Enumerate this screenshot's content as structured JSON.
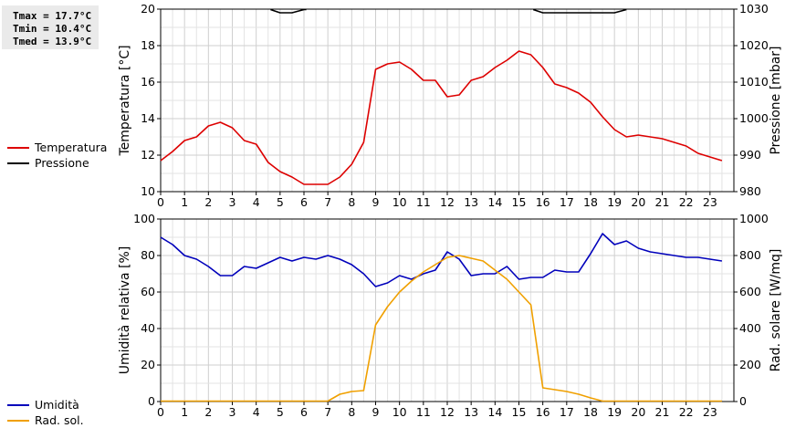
{
  "stats": {
    "tmax": "Tmax = 17.7°C",
    "tmin": "Tmin = 10.4°C",
    "tmed": "Tmed = 13.9°C"
  },
  "legend_top": [
    {
      "label": "Temperatura",
      "color": "#dd0000"
    },
    {
      "label": "Pressione",
      "color": "#000000"
    }
  ],
  "legend_bottom": [
    {
      "label": "Umidità",
      "color": "#0000bb"
    },
    {
      "label": "Rad. sol.",
      "color": "#f0a000"
    }
  ],
  "chart_data": [
    {
      "type": "line",
      "xlabel": "",
      "x_ticks": [
        "0",
        "1",
        "2",
        "3",
        "4",
        "5",
        "6",
        "7",
        "8",
        "9",
        "10",
        "11",
        "12",
        "13",
        "14",
        "15",
        "16",
        "17",
        "18",
        "19",
        "20",
        "21",
        "22",
        "23"
      ],
      "xlim": [
        0,
        24
      ],
      "ylabel": "Temperatura [°C]",
      "ylim": [
        10,
        20
      ],
      "y_ticks": [
        "10",
        "12",
        "14",
        "16",
        "18",
        "20"
      ],
      "y2label": "Pressione [mbar]",
      "y2lim": [
        980,
        1030
      ],
      "y2_ticks": [
        "980",
        "990",
        "1000",
        "1010",
        "1020",
        "1030"
      ],
      "grid": true,
      "series": [
        {
          "name": "Temperatura",
          "axis": "left",
          "color": "#dd0000",
          "x": [
            0,
            0.5,
            1,
            1.5,
            2,
            2.5,
            3,
            3.5,
            4,
            4.5,
            5,
            5.5,
            6,
            6.5,
            7,
            7.5,
            8,
            8.5,
            9,
            9.5,
            10,
            10.5,
            11,
            11.5,
            12,
            12.5,
            13,
            13.5,
            14,
            14.5,
            15,
            15.5,
            16,
            16.5,
            17,
            17.5,
            18,
            18.5,
            19,
            19.5,
            20,
            20.5,
            21,
            21.5,
            22,
            22.5,
            23,
            23.5
          ],
          "y": [
            11.7,
            12.2,
            12.8,
            13.0,
            13.6,
            13.8,
            13.5,
            12.8,
            12.6,
            11.6,
            11.1,
            10.8,
            10.4,
            10.4,
            10.4,
            10.8,
            11.5,
            12.7,
            16.7,
            17.0,
            17.1,
            16.7,
            16.1,
            16.1,
            15.2,
            15.3,
            16.1,
            16.3,
            16.8,
            17.2,
            17.7,
            17.5,
            16.8,
            15.9,
            15.7,
            15.4,
            14.9,
            14.1,
            13.4,
            13.0,
            13.1,
            13.0,
            12.9,
            12.7,
            12.5,
            12.1,
            11.9,
            11.7
          ]
        },
        {
          "name": "Pressione",
          "axis": "right",
          "color": "#000000",
          "x": [
            4.6,
            5.0,
            5.5,
            6.0,
            6.1
          ],
          "y": [
            1030,
            1029,
            1029,
            1030,
            1030
          ],
          "x2": [
            15.6,
            16.0,
            17.0,
            18.0,
            19.0,
            19.5
          ],
          "y2": [
            1030,
            1029,
            1029,
            1029,
            1029,
            1030
          ]
        }
      ]
    },
    {
      "type": "line",
      "xlabel": "",
      "x_ticks": [
        "0",
        "1",
        "2",
        "3",
        "4",
        "5",
        "6",
        "7",
        "8",
        "9",
        "10",
        "11",
        "12",
        "13",
        "14",
        "15",
        "16",
        "17",
        "18",
        "19",
        "20",
        "21",
        "22",
        "23"
      ],
      "xlim": [
        0,
        24
      ],
      "ylabel": "Umidità relativa [%]",
      "ylim": [
        0,
        100
      ],
      "y_ticks": [
        "0",
        "20",
        "40",
        "60",
        "80",
        "100"
      ],
      "y2label": "Rad. solare [W/mq]",
      "y2lim": [
        0,
        1000
      ],
      "y2_ticks": [
        "0",
        "200",
        "400",
        "600",
        "800",
        "1000"
      ],
      "grid": true,
      "series": [
        {
          "name": "Umidità",
          "axis": "left",
          "color": "#0000bb",
          "x": [
            0,
            0.5,
            1,
            1.5,
            2,
            2.5,
            3,
            3.5,
            4,
            4.5,
            5,
            5.5,
            6,
            6.5,
            7,
            7.5,
            8,
            8.5,
            9,
            9.5,
            10,
            10.5,
            11,
            11.5,
            12,
            12.5,
            13,
            13.5,
            14,
            14.5,
            15,
            15.5,
            16,
            16.5,
            17,
            17.5,
            18,
            18.5,
            19,
            19.5,
            20,
            20.5,
            21,
            21.5,
            22,
            22.5,
            23,
            23.5
          ],
          "y": [
            90,
            86,
            80,
            78,
            74,
            69,
            69,
            74,
            73,
            76,
            79,
            77,
            79,
            78,
            80,
            78,
            75,
            70,
            63,
            65,
            69,
            67,
            70,
            72,
            82,
            78,
            69,
            70,
            70,
            74,
            67,
            68,
            68,
            72,
            71,
            71,
            81,
            92,
            86,
            88,
            84,
            82,
            81,
            80,
            79,
            79,
            78,
            77
          ]
        },
        {
          "name": "Rad. sol.",
          "axis": "right",
          "color": "#f0a000",
          "x": [
            0,
            1,
            2,
            3,
            4,
            5,
            6,
            7,
            7.5,
            8,
            8.5,
            9,
            9.5,
            10,
            10.5,
            11,
            11.5,
            12,
            12.5,
            13,
            13.5,
            14,
            14.5,
            15,
            15.5,
            16,
            16.5,
            17,
            17.5,
            18,
            18.5,
            19,
            20,
            21,
            22,
            23,
            23.5
          ],
          "y": [
            0,
            0,
            0,
            0,
            0,
            0,
            0,
            0,
            40,
            55,
            60,
            420,
            520,
            600,
            660,
            710,
            750,
            790,
            800,
            785,
            770,
            720,
            670,
            600,
            530,
            75,
            65,
            55,
            40,
            20,
            0,
            0,
            0,
            0,
            0,
            0,
            0
          ]
        }
      ]
    }
  ]
}
